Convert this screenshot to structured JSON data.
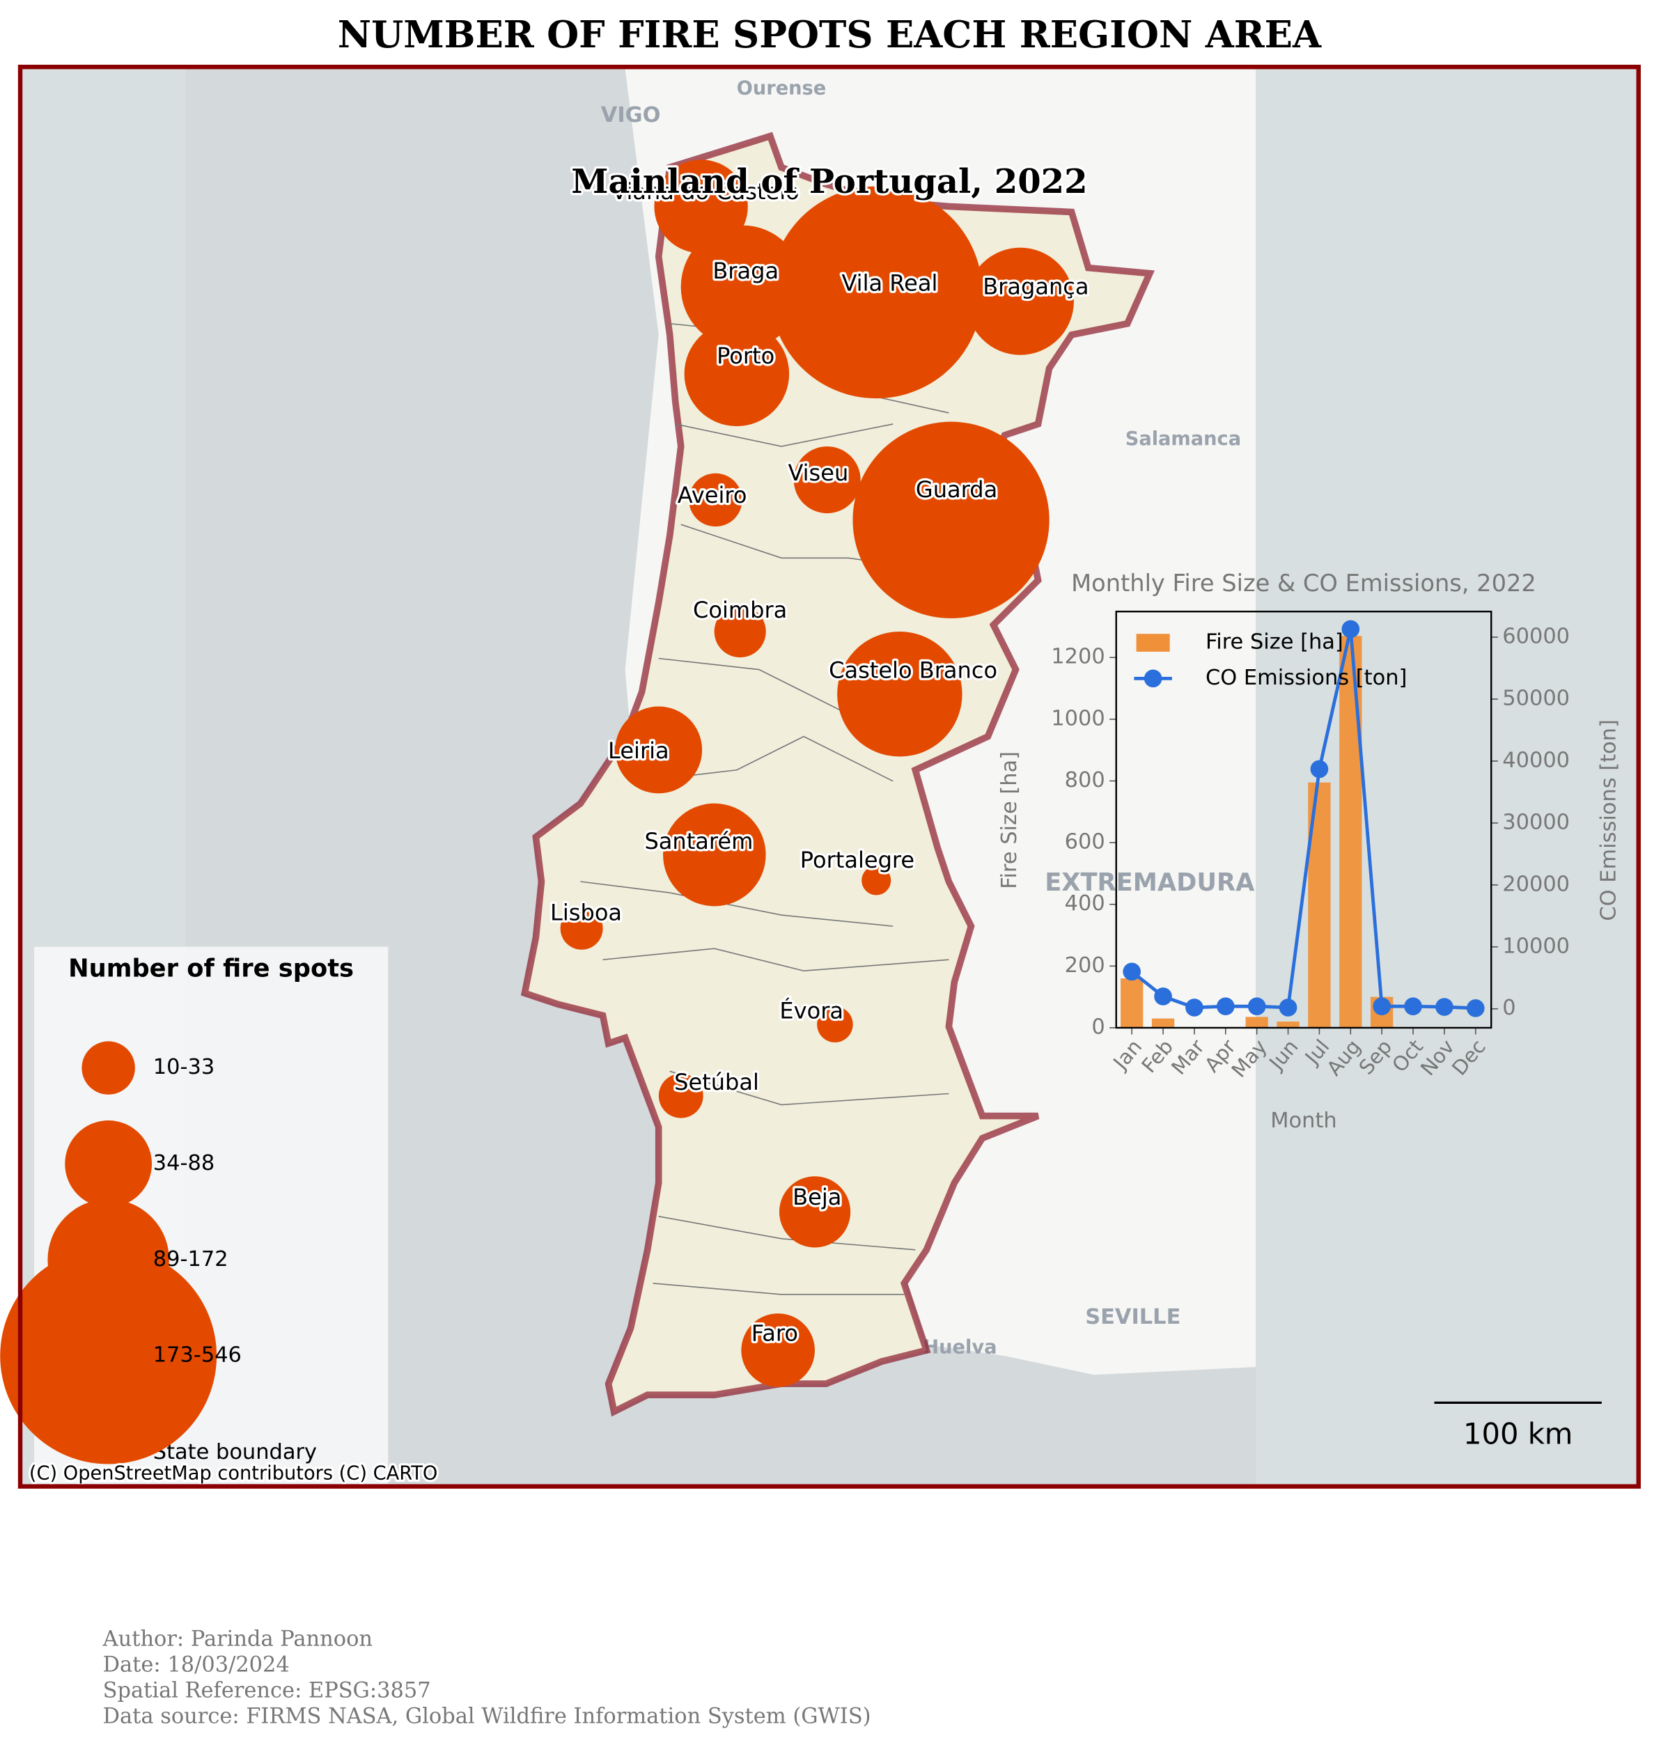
{
  "title": "NUMBER OF FIRE SPOTS EACH REGION AREA",
  "map": {
    "subtitle": "Mainland of Portugal, 2022",
    "regions": [
      {
        "name": "Viana do Castelo",
        "fire_spots": 102
      },
      {
        "name": "Braga",
        "fire_spots": 176
      },
      {
        "name": "Vila Real",
        "fire_spots": 524
      },
      {
        "name": "Bragança",
        "fire_spots": 134
      },
      {
        "name": "Porto",
        "fire_spots": 128
      },
      {
        "name": "Aveiro",
        "fire_spots": 33
      },
      {
        "name": "Viseu",
        "fire_spots": 52
      },
      {
        "name": "Guarda",
        "fire_spots": 450
      },
      {
        "name": "Coimbra",
        "fire_spots": 31
      },
      {
        "name": "Castelo Branco",
        "fire_spots": 182
      },
      {
        "name": "Leiria",
        "fire_spots": 88
      },
      {
        "name": "Santarém",
        "fire_spots": 123
      },
      {
        "name": "Portalegre",
        "fire_spots": 10
      },
      {
        "name": "Lisboa",
        "fire_spots": 21
      },
      {
        "name": "Évora",
        "fire_spots": 15
      },
      {
        "name": "Setúbal",
        "fire_spots": 23
      },
      {
        "name": "Beja",
        "fire_spots": 59
      },
      {
        "name": "Faro",
        "fire_spots": 63
      }
    ],
    "bubble_color": "#e34a00",
    "legend": {
      "title": "Number of fire spots",
      "classes": [
        {
          "label": "10-33",
          "value": 33
        },
        {
          "label": "34-88",
          "value": 88
        },
        {
          "label": "89-172",
          "value": 172
        },
        {
          "label": "173-546",
          "value": 546
        }
      ],
      "boundary_label": "State boundary"
    },
    "basemap_labels": [
      "Ourense",
      "VIGO",
      "Salamanca",
      "EXTREMADURA",
      "SEVILLE",
      "Huelva"
    ],
    "attribution": "(C) OpenStreetMap contributors (C) CARTO",
    "scale_bar": "100 km"
  },
  "chart_data": {
    "type": "bar",
    "title": "Monthly Fire Size & CO Emissions, 2022",
    "xlabel": "Month",
    "ylabel": "Fire Size [ha]",
    "y2label": "CO Emissions [ton]",
    "categories": [
      "Jan",
      "Feb",
      "Mar",
      "Apr",
      "May",
      "Jun",
      "Jul",
      "Aug",
      "Sep",
      "Oct",
      "Nov",
      "Dec"
    ],
    "series": [
      {
        "name": "Fire Size [ha]",
        "type": "bar",
        "color": "#f0913a",
        "values": [
          160,
          30,
          0,
          0,
          35,
          20,
          795,
          1270,
          100,
          0,
          0,
          0
        ]
      },
      {
        "name": "CO Emissions [ton]",
        "type": "line",
        "axis": "y2",
        "color": "#2a6fdb",
        "values": [
          6000,
          2000,
          200,
          400,
          400,
          200,
          38700,
          61300,
          400,
          400,
          300,
          100
        ]
      }
    ],
    "ylim": [
      0,
      1349
    ],
    "yticks": [
      0,
      200,
      400,
      600,
      800,
      1000,
      1200
    ],
    "y2lim": [
      -3060,
      64140
    ],
    "y2ticks": [
      0,
      10000,
      20000,
      30000,
      40000,
      50000,
      60000
    ]
  },
  "footer": [
    "Author: Parinda Pannoon",
    "Date: 18/03/2024",
    "Spatial Reference: EPSG:3857",
    "Data source: FIRMS NASA, Global Wildfire Information System (GWIS)"
  ]
}
